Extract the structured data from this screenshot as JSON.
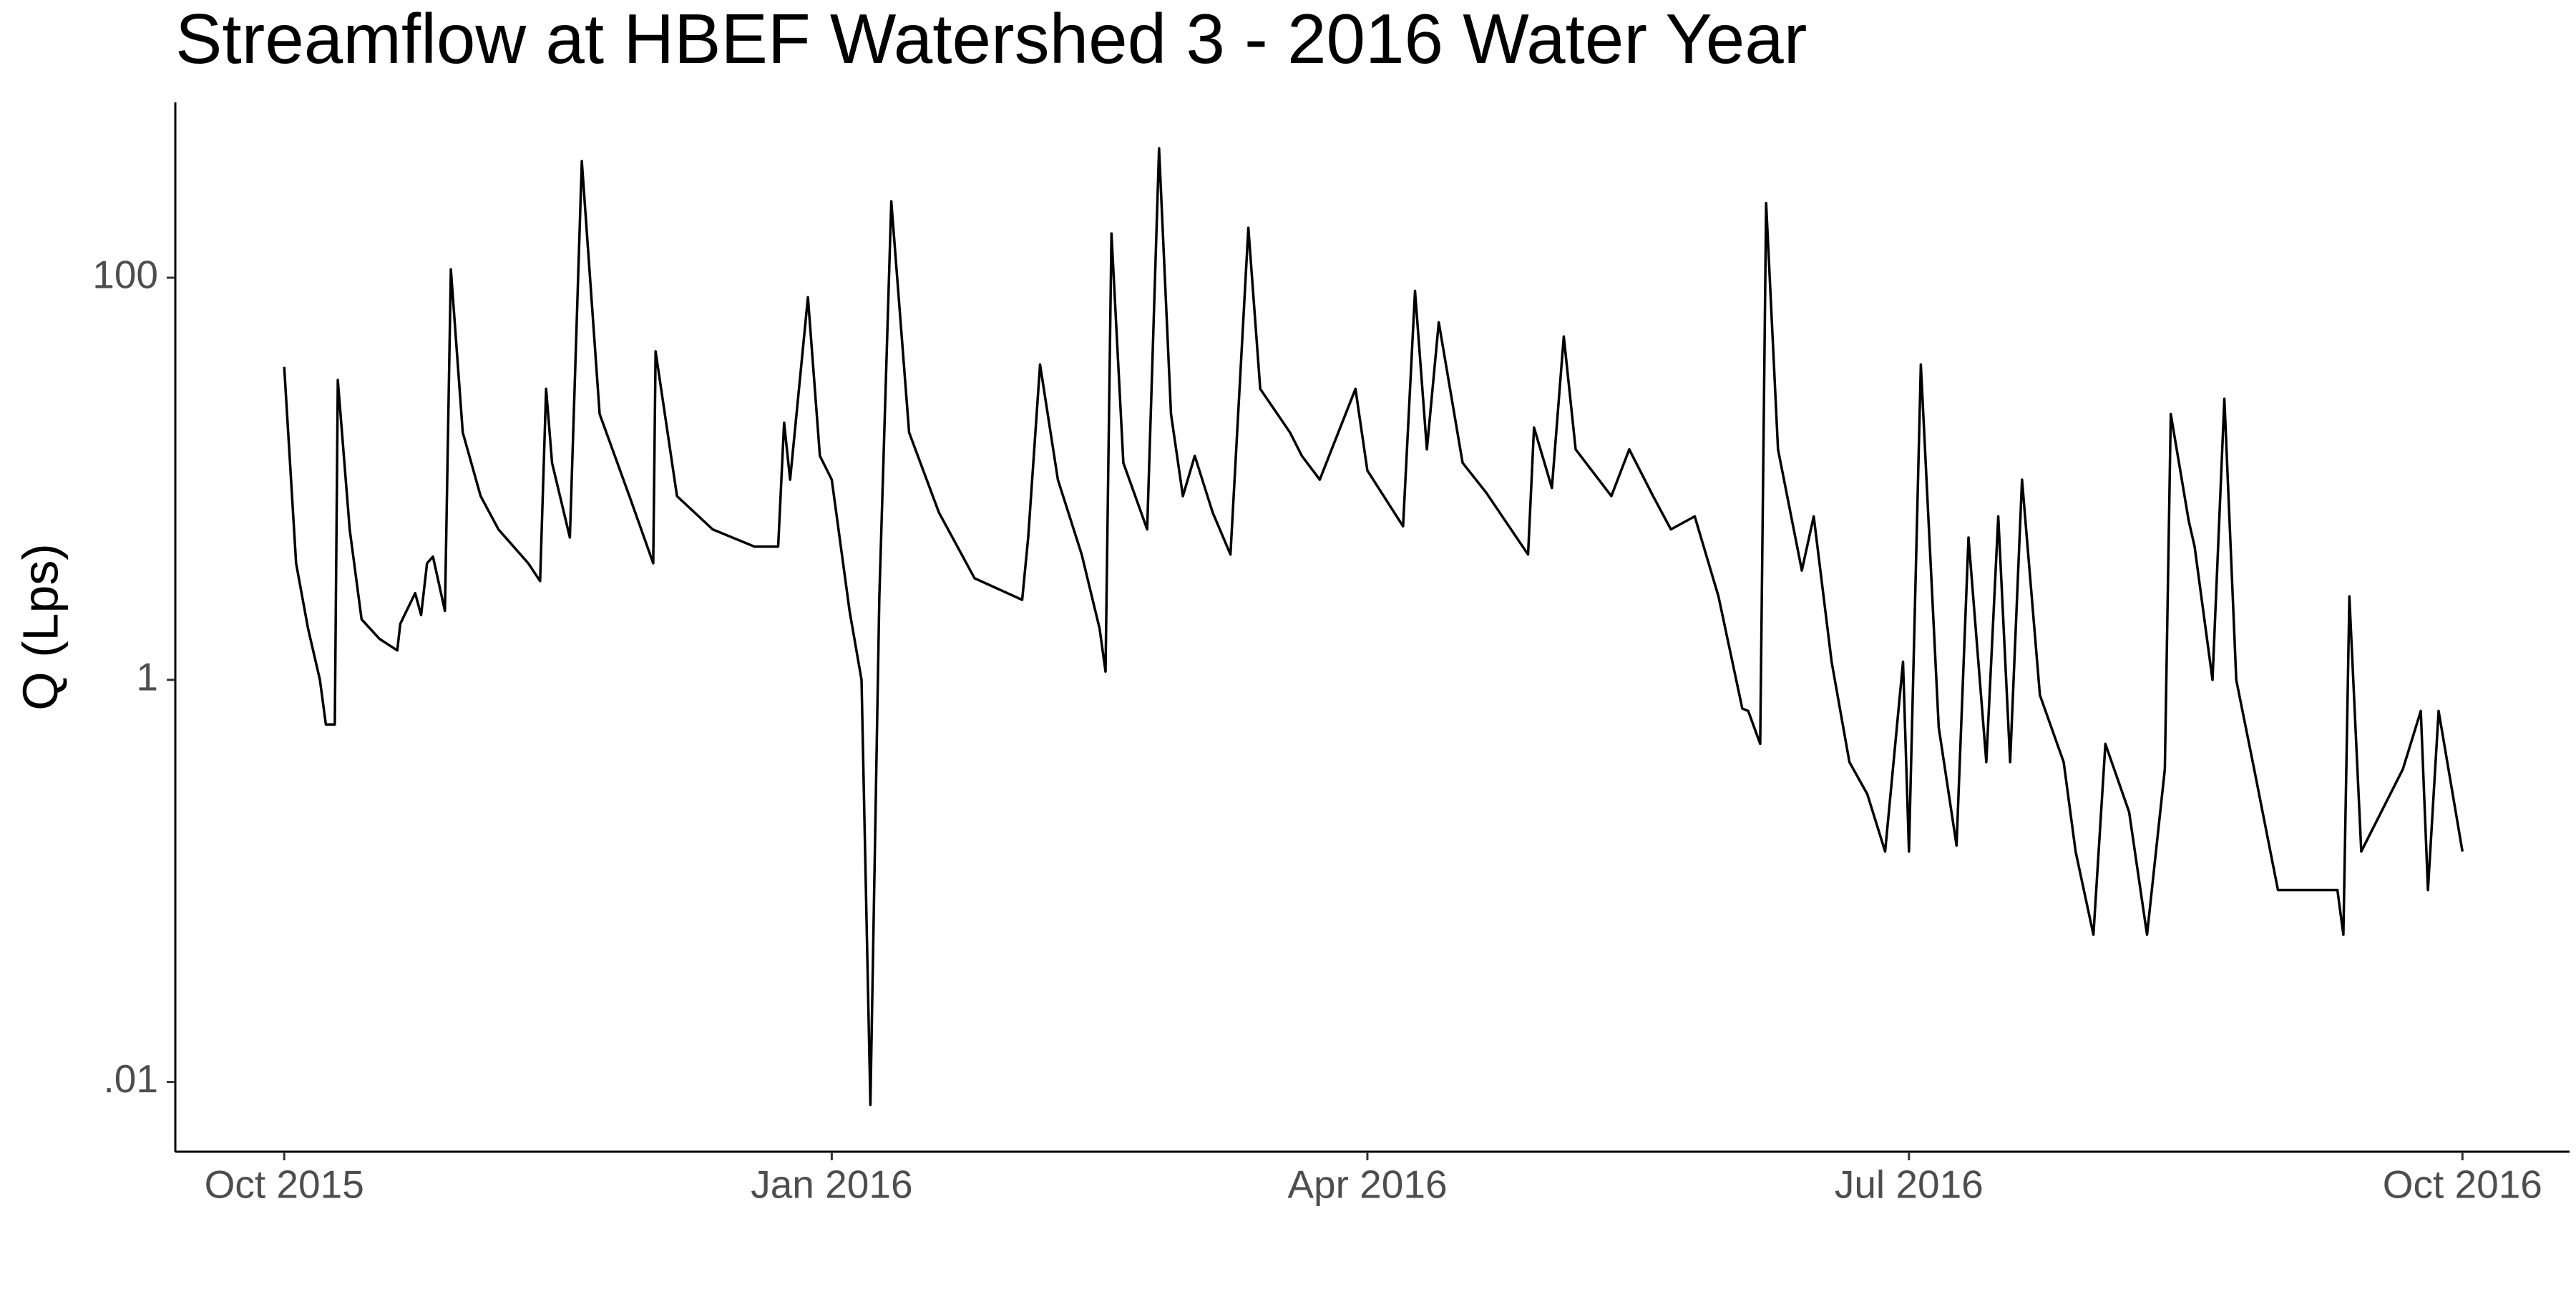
{
  "chart_data": {
    "type": "line",
    "title": "Streamflow at HBEF Watershed 3 - 2016 Water Year",
    "y_label": "Q (Lps)",
    "y_scale": "log",
    "color": "#000000",
    "grid": false,
    "xlim": [
      -18.3,
      384
    ],
    "xticks": [
      {
        "value": 0,
        "label": "Oct 2015"
      },
      {
        "value": 92,
        "label": "Jan 2016"
      },
      {
        "value": 182,
        "label": "Apr 2016"
      },
      {
        "value": 273,
        "label": "Jul 2016"
      },
      {
        "value": 366,
        "label": "Oct 2016"
      }
    ],
    "ylim": [
      0.0045,
      745
    ],
    "yticks": [
      {
        "value": 0.01,
        "label": ".01"
      },
      1,
      100
    ],
    "x": [
      0,
      2,
      4,
      6,
      7,
      8.5,
      9,
      11,
      13,
      16,
      19,
      19.5,
      22,
      23,
      24,
      25,
      27,
      28,
      30,
      33,
      36,
      41,
      43,
      44,
      45,
      48,
      50,
      53,
      58,
      62,
      62.4,
      66,
      72,
      79,
      83,
      84,
      85,
      88,
      90,
      92,
      95,
      97,
      98.5,
      100,
      102,
      105,
      110,
      116,
      124,
      125,
      127,
      130,
      134,
      137,
      138,
      139,
      141,
      145,
      147,
      149,
      151,
      153,
      156,
      159,
      162,
      164,
      169,
      171,
      174,
      176,
      180,
      182,
      188,
      190,
      192,
      194,
      198,
      202,
      209,
      210,
      213,
      215,
      217,
      223,
      226,
      230,
      233,
      237,
      241,
      245,
      246,
      248,
      249,
      251,
      255,
      257,
      260,
      263,
      266,
      269,
      272,
      273,
      275,
      278,
      281,
      283,
      286,
      288,
      290,
      292,
      295,
      299,
      301,
      304,
      306,
      310,
      313,
      316,
      317,
      320,
      321,
      324,
      326,
      328,
      331,
      335,
      345,
      346,
      347,
      349,
      356,
      359,
      360.2,
      362,
      366
    ],
    "values": [
      36,
      3.8,
      1.8,
      1,
      0.6,
      0.6,
      31,
      5.6,
      2,
      1.6,
      1.4,
      1.9,
      2.7,
      2.1,
      3.8,
      4.1,
      2.2,
      110,
      17,
      8.2,
      5.6,
      3.8,
      3.1,
      28,
      12,
      5.1,
      380,
      21,
      8.2,
      3.8,
      43,
      8.2,
      5.6,
      4.6,
      4.6,
      19,
      9.9,
      80,
      13,
      9.9,
      2.2,
      1,
      0.0077,
      2.6,
      240,
      17,
      6.8,
      3.2,
      2.5,
      5.1,
      37,
      9.9,
      4.2,
      1.8,
      1.1,
      166,
      12,
      5.6,
      440,
      21,
      8.2,
      13,
      6.8,
      4.2,
      177,
      28,
      17,
      13,
      9.9,
      14,
      28,
      11,
      5.8,
      86,
      14,
      60,
      12,
      8.5,
      4.2,
      18,
      9,
      51,
      14,
      8.2,
      14,
      8.2,
      5.6,
      6.5,
      2.6,
      0.72,
      0.7,
      0.48,
      235,
      14,
      3.5,
      6.5,
      1.23,
      0.39,
      0.27,
      0.14,
      1.23,
      0.14,
      37,
      0.58,
      0.15,
      5.1,
      0.39,
      6.5,
      0.39,
      9.9,
      0.84,
      0.39,
      0.14,
      0.054,
      0.48,
      0.22,
      0.054,
      0.36,
      21,
      6.2,
      4.6,
      1,
      25,
      1,
      0.36,
      0.09,
      0.09,
      0.054,
      2.6,
      0.14,
      0.36,
      0.7,
      0.09,
      0.7,
      0.14
    ]
  }
}
